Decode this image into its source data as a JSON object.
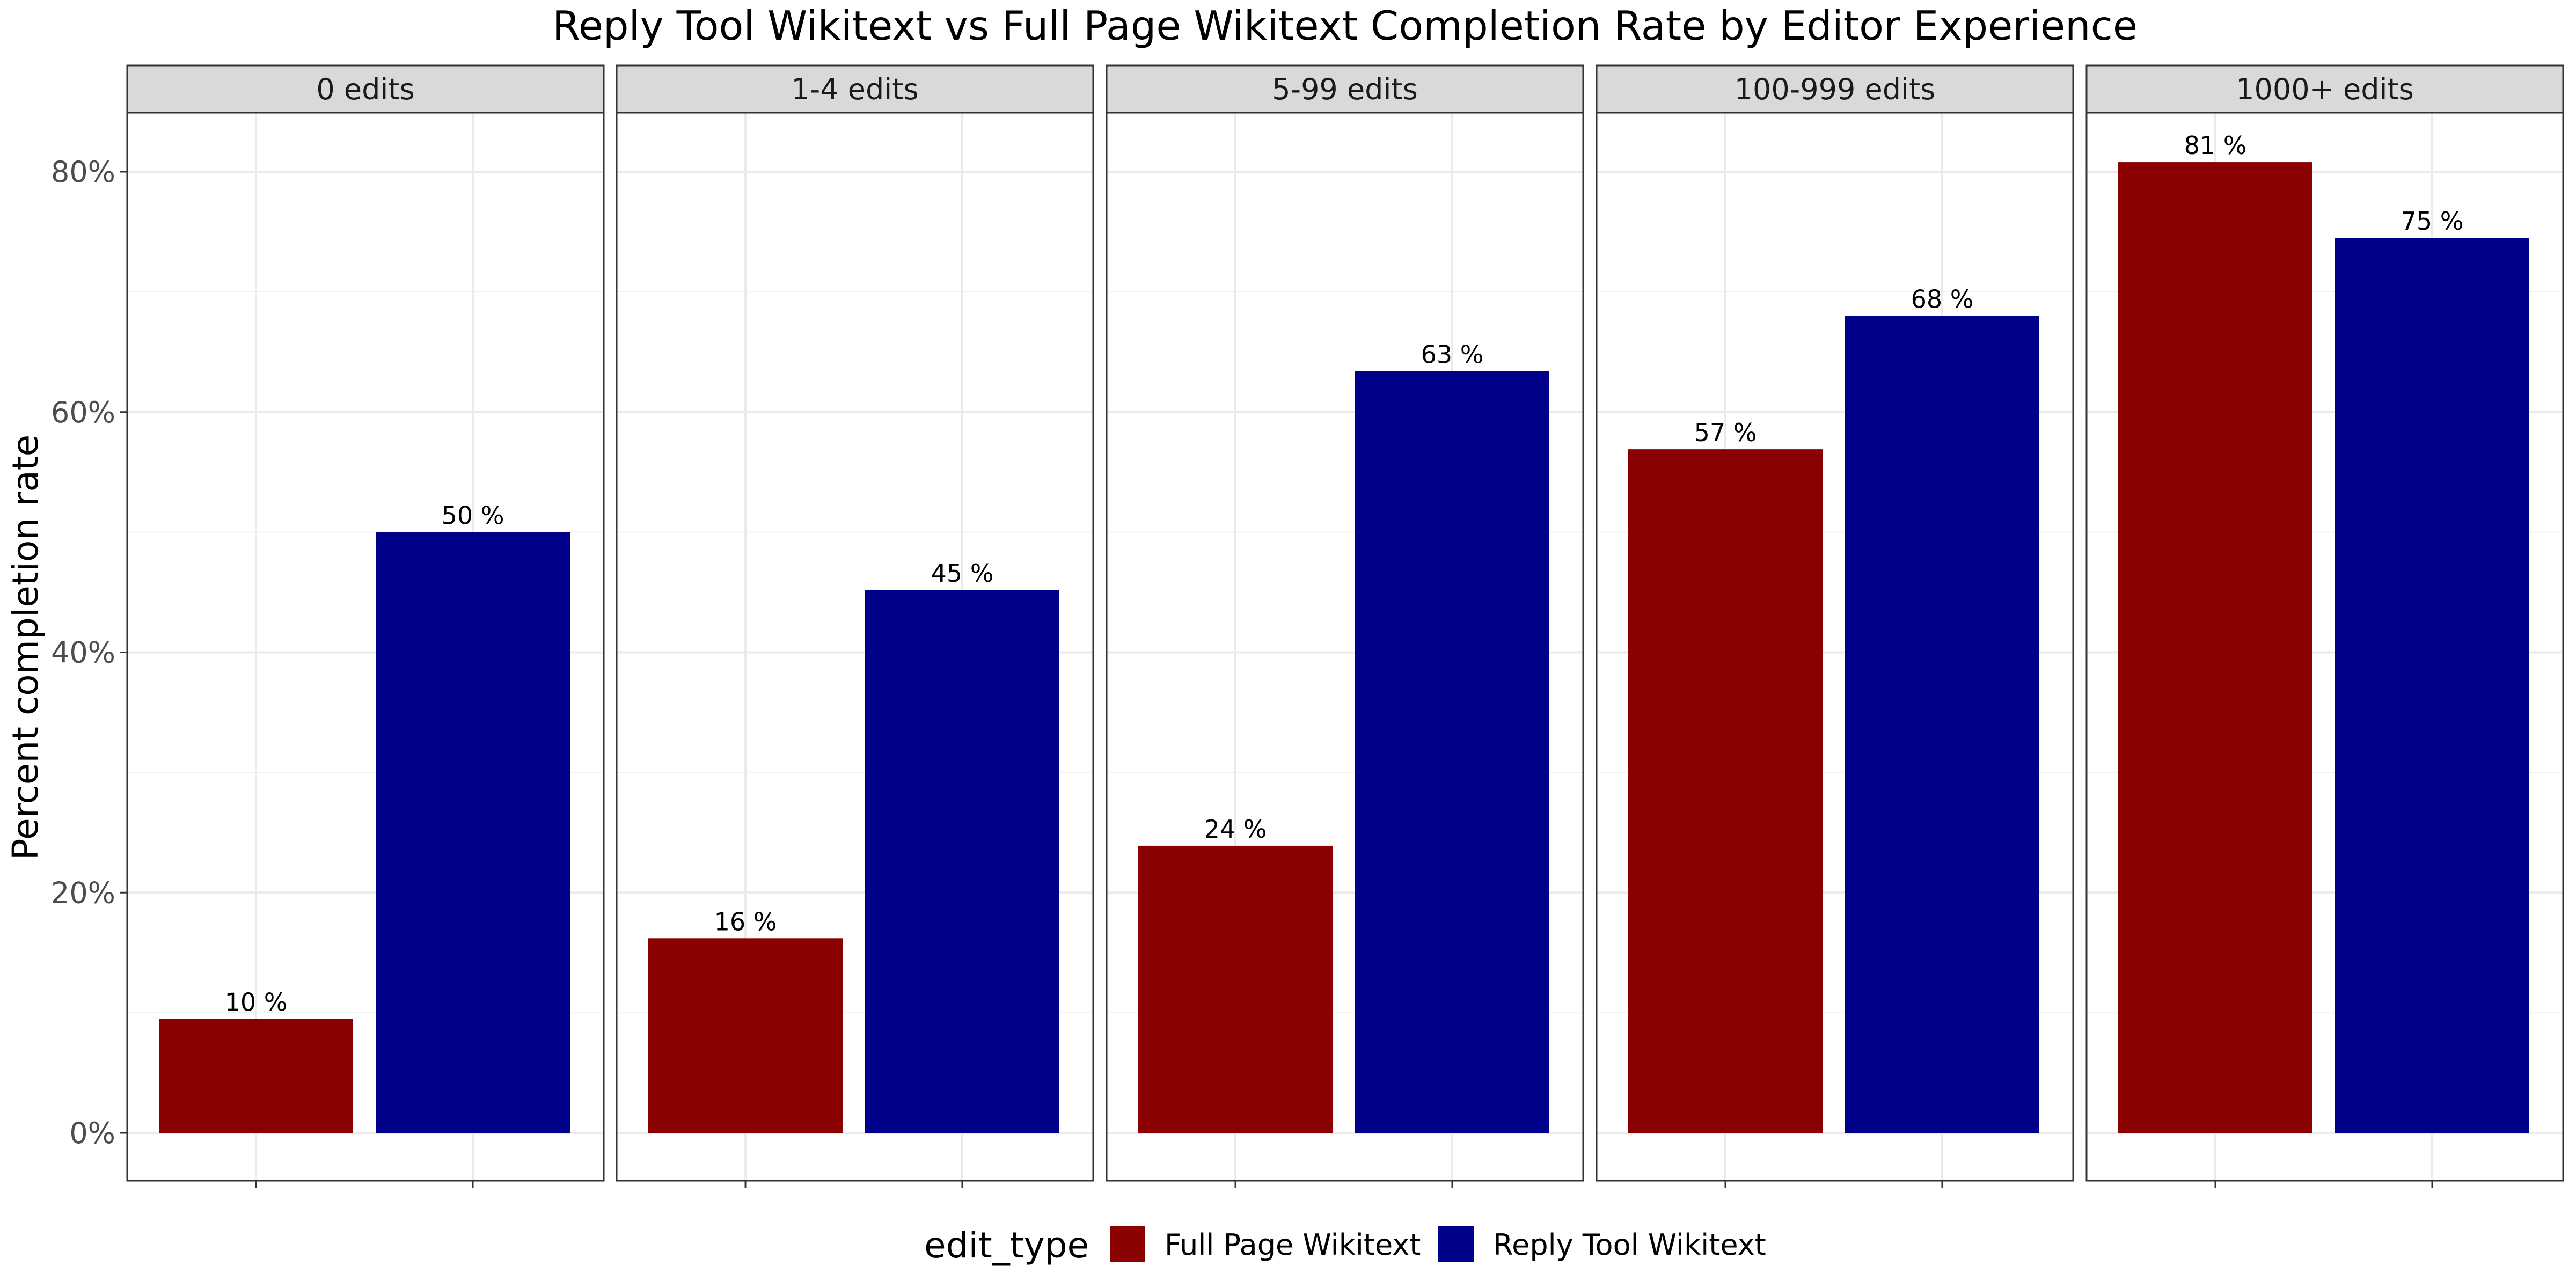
{
  "chart_data": {
    "type": "bar",
    "title": "Reply Tool Wikitext vs Full Page Wikitext Completion Rate by Editor Experience",
    "ylabel": "Percent completion rate",
    "ylim": [
      -0.04,
      0.85
    ],
    "y_ticks": [
      0,
      0.2,
      0.4,
      0.6,
      0.8
    ],
    "y_tick_labels": [
      "0%",
      "20%",
      "40%",
      "60%",
      "80%"
    ],
    "grid": true,
    "facet_variable": "experience",
    "facets": [
      "0 edits",
      "1-4 edits",
      "5-99 edits",
      "100-999 edits",
      "1000+ edits"
    ],
    "series": [
      {
        "name": "Full Page Wikitext",
        "color": "#8B0000",
        "values": [
          0.095,
          0.162,
          0.239,
          0.569,
          0.808
        ],
        "labels": [
          "10 %",
          "16 %",
          "24 %",
          "57 %",
          "81 %"
        ]
      },
      {
        "name": "Reply Tool Wikitext",
        "color": "#00008B",
        "values": [
          0.5,
          0.452,
          0.634,
          0.68,
          0.745
        ],
        "labels": [
          "50 %",
          "45 %",
          "63 %",
          "68 %",
          "75 %"
        ]
      }
    ],
    "legend": {
      "title": "edit_type",
      "position": "bottom"
    }
  }
}
